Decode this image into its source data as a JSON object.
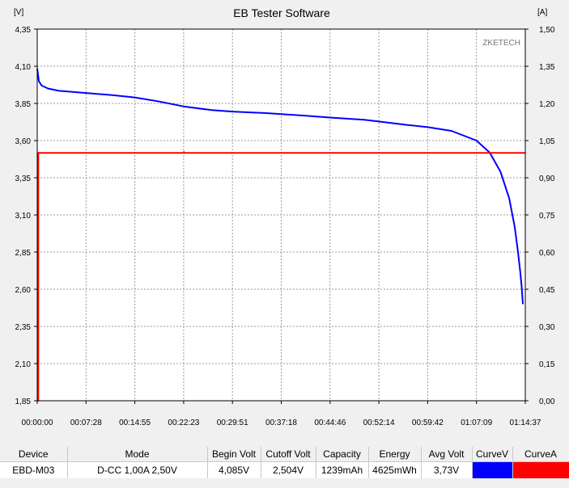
{
  "window": {
    "title": "EB Tester Software"
  },
  "watermark": "ZKETECH",
  "chart_data": {
    "type": "line",
    "title": "EB Tester Software",
    "y_left": {
      "unit": "[V]",
      "min": 1.85,
      "max": 4.35,
      "ticks": [
        "4,35",
        "4,10",
        "3,85",
        "3,60",
        "3,35",
        "3,10",
        "2,85",
        "2,60",
        "2,35",
        "2,10",
        "1,85"
      ]
    },
    "y_right": {
      "unit": "[A]",
      "min": 0.0,
      "max": 1.5,
      "ticks": [
        "1,50",
        "1,35",
        "1,20",
        "1,05",
        "0,90",
        "0,75",
        "0,60",
        "0,45",
        "0,30",
        "0,15",
        "0,00"
      ]
    },
    "x": {
      "unit": "seconds",
      "min": 0,
      "max": 4477,
      "tick_labels": [
        "00:00:00",
        "00:07:28",
        "00:14:55",
        "00:22:23",
        "00:29:51",
        "00:37:18",
        "00:44:46",
        "00:52:14",
        "00:59:42",
        "01:07:09",
        "01:14:37"
      ]
    },
    "grid": true,
    "series": [
      {
        "axis": "left",
        "color": "#0000ff",
        "points": [
          [
            0,
            4.085
          ],
          [
            15,
            4.0
          ],
          [
            40,
            3.97
          ],
          [
            100,
            3.95
          ],
          [
            200,
            3.935
          ],
          [
            448,
            3.92
          ],
          [
            700,
            3.905
          ],
          [
            895,
            3.89
          ],
          [
            1100,
            3.865
          ],
          [
            1343,
            3.83
          ],
          [
            1600,
            3.805
          ],
          [
            1791,
            3.795
          ],
          [
            2100,
            3.785
          ],
          [
            2239,
            3.778
          ],
          [
            2500,
            3.765
          ],
          [
            2686,
            3.755
          ],
          [
            3000,
            3.74
          ],
          [
            3134,
            3.728
          ],
          [
            3400,
            3.705
          ],
          [
            3582,
            3.69
          ],
          [
            3800,
            3.665
          ],
          [
            4029,
            3.6
          ],
          [
            4150,
            3.52
          ],
          [
            4250,
            3.39
          ],
          [
            4330,
            3.21
          ],
          [
            4380,
            3.02
          ],
          [
            4410,
            2.85
          ],
          [
            4430,
            2.72
          ],
          [
            4446,
            2.6
          ],
          [
            4455,
            2.5
          ]
        ]
      },
      {
        "axis": "right",
        "color": "#ff0000",
        "points": [
          [
            0,
            0.0
          ],
          [
            10,
            0.0
          ],
          [
            10,
            1.0
          ],
          [
            1343,
            1.0
          ],
          [
            1345,
            1.004
          ],
          [
            1347,
            1.0
          ],
          [
            4477,
            1.0
          ]
        ]
      }
    ]
  },
  "summary": {
    "headers": [
      "Device",
      "Mode",
      "Begin Volt",
      "Cutoff Volt",
      "Capacity",
      "Energy",
      "Avg Volt",
      "CurveV",
      "CurveA"
    ],
    "row": [
      "EBD-M03",
      "D-CC  1,00A  2,50V",
      "4,085V",
      "2,504V",
      "1239mAh",
      "4625mWh",
      "3,73V"
    ],
    "curve_colors": [
      "#0000ff",
      "#ff0000"
    ]
  }
}
